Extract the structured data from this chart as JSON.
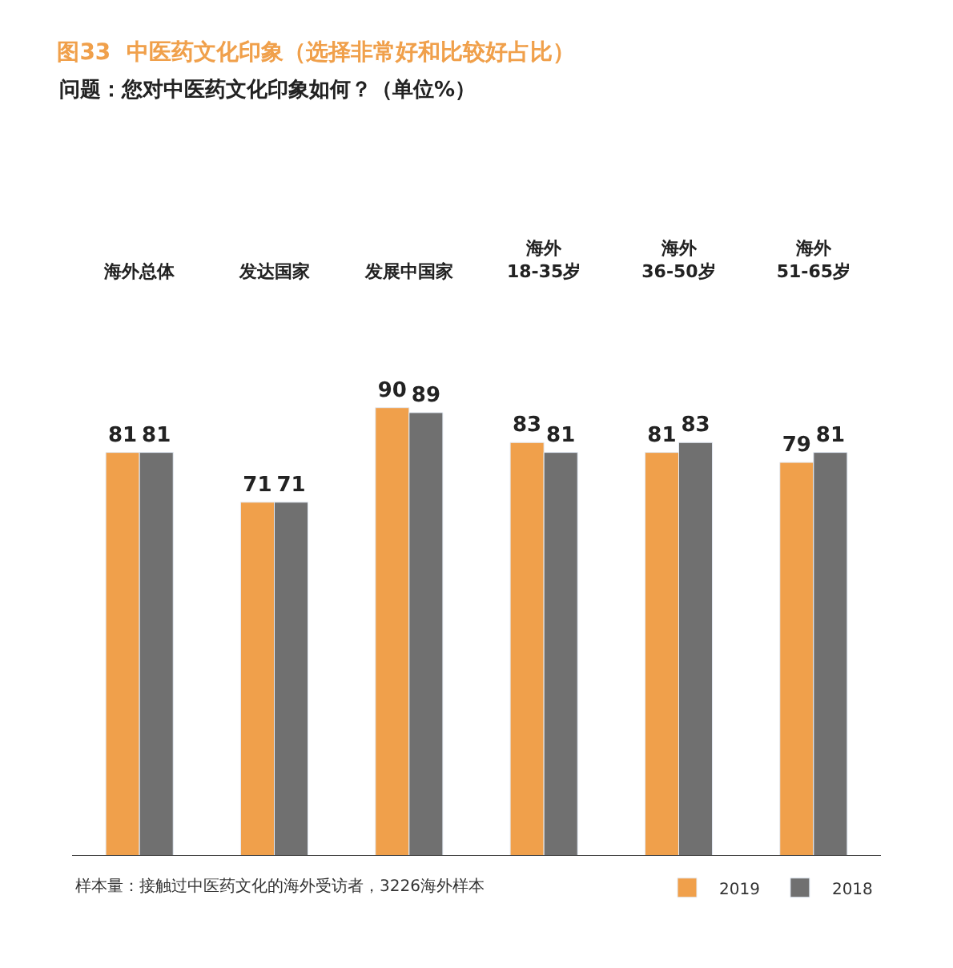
{
  "chart_data": {
    "type": "bar",
    "title": "图33  中医药文化印象（选择非常好和比较好占比）",
    "subtitle": "问题：您对中医药文化印象如何？（单位%）",
    "categories": [
      "海外总体",
      "发达国家",
      "发展中国家",
      "海外\n18-35岁",
      "海外\n36-50岁",
      "海外\n51-65岁"
    ],
    "series": [
      {
        "name": "2019",
        "color": "#f0a04b",
        "values": [
          81,
          71,
          90,
          83,
          81,
          79
        ]
      },
      {
        "name": "2018",
        "color": "#707070",
        "values": [
          81,
          71,
          89,
          81,
          83,
          81
        ]
      }
    ],
    "data_labels": true,
    "legend": "bottom right",
    "annotations": [
      "样本量：接触过中医药文化的海外受访者，3226海外样本"
    ]
  }
}
